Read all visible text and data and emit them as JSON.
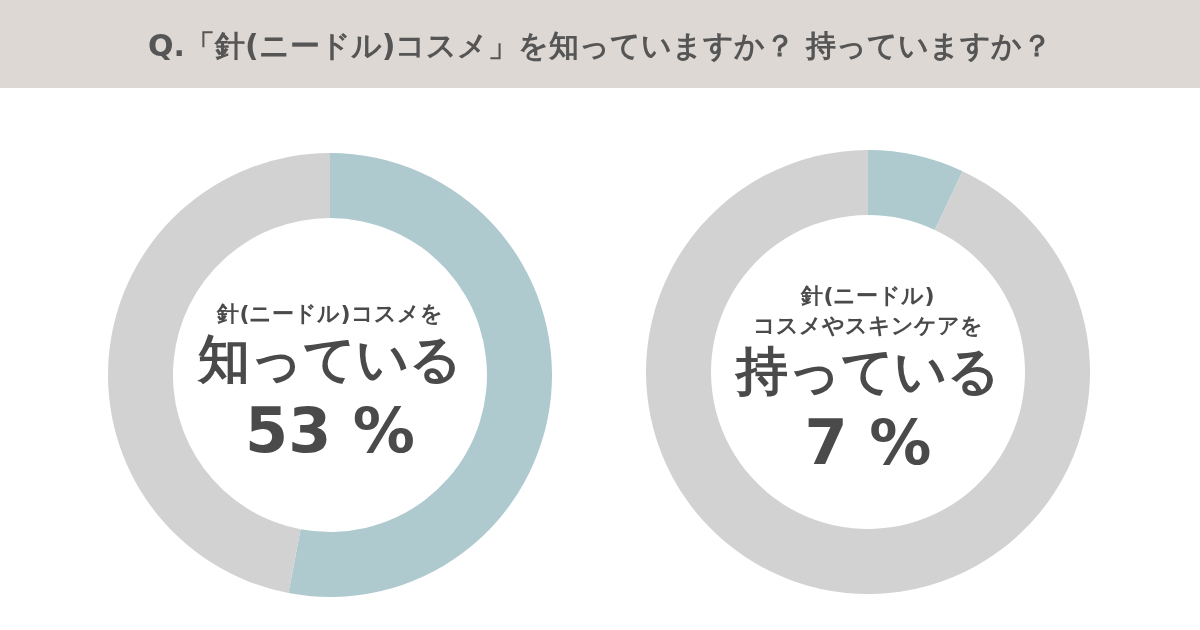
{
  "chart_data": [
    {
      "type": "donut",
      "title": "Q.「針(ニードル)コスメ」を知っていますか？ 持っていますか？",
      "categories": [
        null,
        null
      ],
      "values": [
        53,
        47
      ],
      "colors": [
        "#aecacf",
        "#d2d2d2"
      ],
      "annotations": [
        "針(ニードル)コスメを",
        "知っている",
        "53 %"
      ]
    },
    {
      "type": "donut",
      "categories": [
        null,
        null
      ],
      "values": [
        7,
        93
      ],
      "colors": [
        "#aecacf",
        "#d2d2d2"
      ],
      "annotations": [
        "針(ニードル)",
        "コスメやスキンケアを",
        "持っている",
        "7 %"
      ]
    }
  ]
}
